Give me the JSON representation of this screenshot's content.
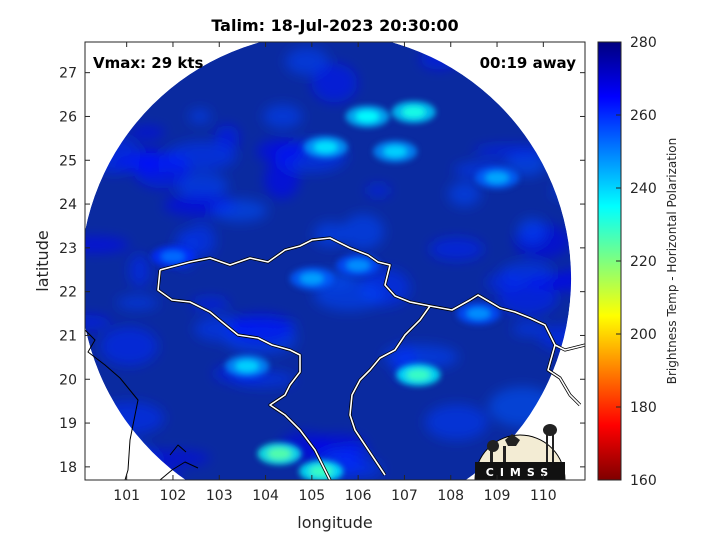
{
  "chart_data": {
    "type": "heatmap",
    "title": "Talim: 18-Jul-2023 20:30:00",
    "annotations": {
      "vmax": "Vmax: 29 kts",
      "time_away": "00:19 away"
    },
    "xlabel": "longitude",
    "ylabel": "latitude",
    "xlim": [
      100.1,
      110.9
    ],
    "ylim": [
      17.7,
      27.7
    ],
    "xticks": [
      101,
      102,
      103,
      104,
      105,
      106,
      107,
      108,
      109,
      110
    ],
    "yticks": [
      18,
      19,
      20,
      21,
      22,
      23,
      24,
      25,
      26,
      27
    ],
    "colorbar": {
      "label": "Brightness Temp - Horizontal Polarization",
      "range": [
        160,
        280
      ],
      "ticks": [
        160,
        180,
        200,
        220,
        240,
        260,
        280
      ],
      "colormap": "jet"
    },
    "swath": {
      "center": [
        105.3,
        22.3
      ],
      "radius_deg": 5.3
    },
    "warm_spots": [
      {
        "lon": 106.2,
        "lat": 26.0,
        "value": 235
      },
      {
        "lon": 107.2,
        "lat": 26.1,
        "value": 232
      },
      {
        "lon": 105.3,
        "lat": 25.3,
        "value": 238
      },
      {
        "lon": 106.8,
        "lat": 25.2,
        "value": 240
      },
      {
        "lon": 109.0,
        "lat": 24.6,
        "value": 245
      },
      {
        "lon": 107.3,
        "lat": 20.1,
        "value": 228
      },
      {
        "lon": 104.3,
        "lat": 18.3,
        "value": 225
      },
      {
        "lon": 105.2,
        "lat": 17.9,
        "value": 228
      },
      {
        "lon": 103.6,
        "lat": 20.3,
        "value": 240
      },
      {
        "lon": 105.0,
        "lat": 22.3,
        "value": 246
      },
      {
        "lon": 106.0,
        "lat": 22.6,
        "value": 248
      },
      {
        "lon": 102.0,
        "lat": 22.8,
        "value": 252
      },
      {
        "lon": 108.6,
        "lat": 21.5,
        "value": 248
      }
    ],
    "logo_text": "CIMSS",
    "colors": {
      "background_swath": "#0a2aa0",
      "coast_lines": "#ffffff",
      "border_lines": "#000000"
    }
  }
}
